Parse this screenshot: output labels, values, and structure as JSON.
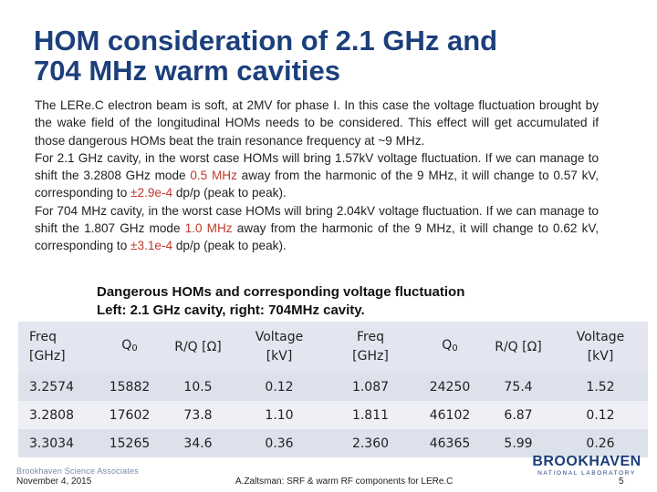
{
  "slide": {
    "title_line1": "HOM consideration of 2.1 GHz and",
    "title_line2": "704 MHz warm cavities"
  },
  "body": {
    "para1": "The LERe.C electron beam is soft, at 2MV for phase I. In this case the voltage fluctuation brought by the wake field of the longitudinal HOMs needs to be considered. This effect will get accumulated if those dangerous HOMs beat the train resonance frequency at ~9 MHz.",
    "para2_a": "For 2.1 GHz cavity, in the worst case HOMs will bring 1.57kV voltage fluctuation. If we can manage to shift the 3.2808 GHz mode ",
    "para2_red1": "0.5 MHz",
    "para2_b": " away from the harmonic of the 9 MHz, it will change to 0.57 kV, corresponding to ",
    "para2_red2": "±2.9e-4",
    "para2_c": " dp/p (peak to peak).",
    "para3_a": "For 704 MHz cavity, in the worst case HOMs will bring 2.04kV voltage fluctuation. If we can manage to shift the 1.807 GHz mode ",
    "para3_red1": "1.0 MHz",
    "para3_b": " away from the harmonic of the 9 MHz, it will change to 0.62 kV, corresponding to ",
    "para3_red2": "±3.1e-4",
    "para3_c": " dp/p (peak to peak)."
  },
  "table": {
    "caption_line1": "Dangerous HOMs and corresponding voltage fluctuation",
    "caption_line2": "Left: 2.1 GHz cavity, right: 704MHz cavity.",
    "headers": {
      "freq_line1": "Freq",
      "freq_line2": "[GHz]",
      "q_main": "Q",
      "q_sub": "0",
      "rq": "R/Q [Ω]",
      "volt_line1": "Voltage",
      "volt_line2": "[kV]"
    },
    "rows": [
      [
        "3.2574",
        "15882",
        "10.5",
        "0.12",
        "1.087",
        "24250",
        "75.4",
        "1.52"
      ],
      [
        "3.2808",
        "17602",
        "73.8",
        "1.10",
        "1.811",
        "46102",
        "6.87",
        "0.12"
      ],
      [
        "3.3034",
        "15265",
        "34.6",
        "0.36",
        "2.360",
        "46365",
        "5.99",
        "0.26"
      ]
    ]
  },
  "footer": {
    "associates": "Brookhaven Science Associates",
    "date": "November 4, 2015",
    "center": "A.Zaltsman: SRF & warm RF components for LERe.C",
    "page": "5",
    "logo_name": "BROOKHAVEN",
    "logo_sub": "NATIONAL LABORATORY"
  },
  "colors": {
    "title": "#1c3f7c",
    "highlight_red": "#c0392b",
    "table_header_bg": "#e3e6f0",
    "logo_blue": "#1c3f7c"
  }
}
